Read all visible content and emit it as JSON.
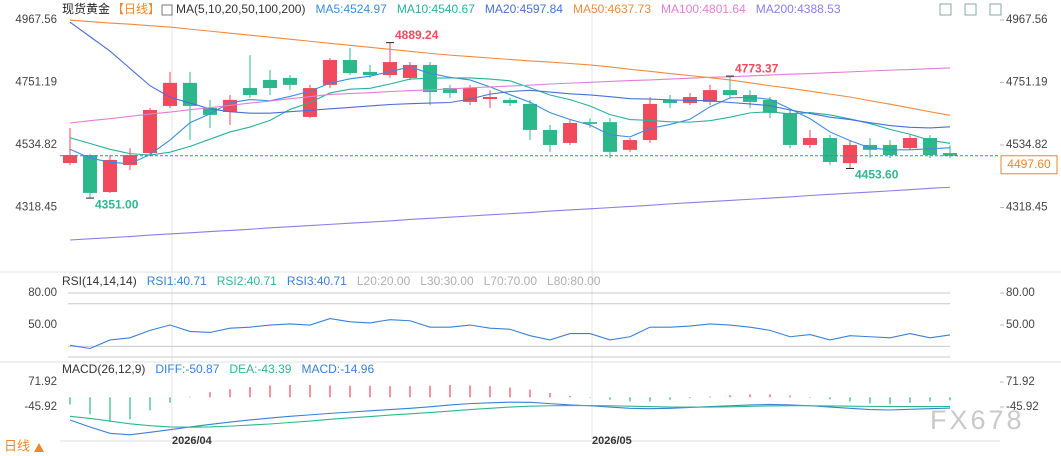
{
  "chart_data": [
    {
      "type": "candlestick",
      "title": "现货黄金",
      "period": "【日线】",
      "indicator": "MA(5,10,20,50,100,200)",
      "categories": [
        null,
        null,
        null,
        null,
        null,
        "2026/04",
        null,
        null,
        null,
        null,
        null,
        null,
        null,
        null,
        null,
        null,
        null,
        null,
        null,
        null,
        null,
        null,
        null,
        null,
        null,
        null,
        "2026/05",
        null,
        null,
        null,
        null,
        null,
        null,
        null,
        null,
        null,
        null,
        null,
        null,
        null,
        null,
        null,
        null,
        null,
        null
      ],
      "open": [
        4472.5,
        4500,
        4372,
        4465.6,
        4507,
        4670,
        4750,
        4663,
        4649,
        4732,
        4760,
        4767,
        4632,
        4743,
        4829,
        4788,
        4777,
        4767,
        4812,
        4732,
        4684,
        4694,
        4691,
        4677,
        4587,
        4542,
        4614,
        4614,
        4518,
        4552,
        4691,
        4680,
        4684,
        4725,
        4708,
        4691,
        4646,
        4535,
        4559,
        4472,
        4535,
        4535,
        4524,
        4559,
        4507
      ],
      "high": [
        4593.7,
        4503,
        4500,
        4524,
        4663,
        4788,
        4788,
        4691,
        4708,
        4846,
        4795,
        4777,
        4743,
        4836,
        4871,
        4812,
        4889.24,
        4822,
        4822,
        4743,
        4743,
        4725,
        4698,
        4691,
        4604,
        4621,
        4628,
        4628,
        4559,
        4701,
        4708,
        4715,
        4743,
        4773.37,
        4725,
        4701,
        4656,
        4587,
        4569,
        4552,
        4559,
        4552,
        4569,
        4569,
        4535
      ],
      "low": [
        4465.6,
        4351,
        4369,
        4448,
        4500,
        4663,
        4552,
        4594,
        4604,
        4698,
        4708,
        4725,
        4628,
        4732,
        4777,
        4767,
        4767,
        4760,
        4673,
        4698,
        4673,
        4663,
        4670,
        4552,
        4511,
        4535,
        4594,
        4490,
        4511,
        4542,
        4663,
        4673,
        4673,
        4698,
        4663,
        4628,
        4524,
        4524,
        4466,
        4453.6,
        4490,
        4490,
        4518,
        4490,
        4490
      ],
      "close": [
        4500,
        4369,
        4483,
        4500,
        4656,
        4750,
        4670,
        4639,
        4691,
        4708,
        4732,
        4743,
        4732,
        4829,
        4784,
        4777,
        4822,
        4812,
        4718,
        4715,
        4732,
        4701,
        4680,
        4587,
        4535,
        4611,
        4608,
        4511,
        4552,
        4677,
        4680,
        4701,
        4725,
        4708,
        4684,
        4646,
        4535,
        4559,
        4476,
        4535,
        4518,
        4500,
        4559,
        4500,
        4497.6
      ],
      "high_labels": [
        null,
        null,
        null,
        null,
        null,
        null,
        null,
        null,
        null,
        null,
        null,
        null,
        null,
        null,
        null,
        null,
        "4889.24",
        null,
        null,
        null,
        null,
        null,
        null,
        null,
        null,
        null,
        null,
        null,
        null,
        null,
        null,
        null,
        null,
        "4773.37",
        null,
        null,
        null,
        null,
        null,
        null,
        null,
        null,
        null,
        null,
        null
      ],
      "low_labels": [
        null,
        "4351.00",
        null,
        null,
        null,
        null,
        null,
        null,
        null,
        null,
        null,
        null,
        null,
        null,
        null,
        null,
        null,
        null,
        null,
        null,
        null,
        null,
        null,
        null,
        null,
        null,
        null,
        null,
        null,
        null,
        null,
        null,
        null,
        null,
        null,
        null,
        null,
        null,
        null,
        "4453.60",
        null,
        null,
        null,
        null,
        null
      ],
      "last_price_label": "4497.60",
      "up_color": "#f04a5c",
      "down_color": "#2db88c",
      "series": [
        {
          "label": "MA5:4524.97",
          "color": "#3b8ddc",
          "values": [
            4520,
            4490,
            4475,
            4470,
            4502,
            4552,
            4612,
            4643,
            4681,
            4692,
            4688,
            4703,
            4721,
            4749,
            4764,
            4773,
            4789,
            4805,
            4783,
            4769,
            4760,
            4736,
            4709,
            4683,
            4647,
            4623,
            4604,
            4570,
            4563,
            4592,
            4606,
            4624,
            4667,
            4698,
            4700,
            4693,
            4660,
            4626,
            4580,
            4550,
            4525,
            4518,
            4518,
            4522,
            4524.97
          ]
        },
        {
          "label": "MA10:4540.67",
          "color": "#27b29a",
          "values": [
            4560,
            4540,
            4520,
            4505,
            4500,
            4510,
            4530,
            4555,
            4580,
            4597,
            4620,
            4658,
            4682,
            4715,
            4728,
            4731,
            4746,
            4763,
            4766,
            4767,
            4767,
            4763,
            4757,
            4733,
            4708,
            4692,
            4670,
            4640,
            4623,
            4620,
            4615,
            4614,
            4619,
            4631,
            4646,
            4650,
            4642,
            4647,
            4639,
            4625,
            4609,
            4589,
            4572,
            4551,
            4540.67
          ]
        },
        {
          "label": "MA20:4597.84",
          "color": "#4a6fd6",
          "values": [
            4960,
            4910,
            4860,
            4800,
            4740,
            4700,
            4680,
            4660,
            4650,
            4645,
            4645,
            4650,
            4655,
            4660,
            4665,
            4670,
            4675,
            4678,
            4680,
            4682,
            4694,
            4711,
            4720,
            4724,
            4718,
            4712,
            4708,
            4702,
            4695,
            4694,
            4691,
            4689,
            4688,
            4682,
            4677,
            4671,
            4656,
            4644,
            4631,
            4623,
            4612,
            4602,
            4596,
            4594,
            4597.84
          ]
        },
        {
          "label": "MA50:4637.73",
          "color": "#f08a3e",
          "values": [
            4967,
            4962,
            4957,
            4953,
            4948,
            4943,
            4936,
            4929,
            4922,
            4915,
            4908,
            4901,
            4894,
            4887,
            4880,
            4873,
            4866,
            4859,
            4852,
            4846,
            4841,
            4836,
            4831,
            4826,
            4822,
            4817,
            4812,
            4805,
            4797,
            4790,
            4782,
            4775,
            4768,
            4760,
            4750,
            4740,
            4731,
            4721,
            4711,
            4701,
            4688,
            4676,
            4663,
            4650,
            4637.73
          ]
        },
        {
          "label": "MA100:4801.64",
          "color": "#e07fd6",
          "values": [
            4611,
            4619,
            4626,
            4634,
            4642,
            4649,
            4657,
            4664,
            4672,
            4680,
            4687,
            4695,
            4702,
            4710,
            4713,
            4716,
            4720,
            4723,
            4726,
            4729,
            4733,
            4736,
            4739,
            4742,
            4746,
            4749,
            4752,
            4755,
            4758,
            4760,
            4763,
            4766,
            4769,
            4771,
            4774,
            4777,
            4780,
            4782,
            4785,
            4788,
            4791,
            4794,
            4796,
            4799,
            4801.64
          ]
        },
        {
          "label": "MA200:4388.53",
          "color": "#8b7ee8",
          "values": [
            4206,
            4210,
            4214,
            4218,
            4223,
            4227,
            4231,
            4235,
            4239,
            4243,
            4248,
            4252,
            4256,
            4260,
            4264,
            4268,
            4272,
            4277,
            4281,
            4285,
            4289,
            4293,
            4297,
            4301,
            4306,
            4310,
            4314,
            4318,
            4322,
            4326,
            4331,
            4335,
            4339,
            4343,
            4347,
            4351,
            4355,
            4360,
            4364,
            4368,
            4372,
            4376,
            4380,
            4385,
            4388.53
          ]
        }
      ],
      "ylim": [
        4102.1,
        5009.1
      ],
      "yticks": [
        4318.45,
        4534.82,
        4751.19,
        4967.56
      ]
    },
    {
      "type": "line",
      "title": "RSI(14,14,14)",
      "series": [
        {
          "label": "RSI1:40.71",
          "color": "#3a80d8",
          "values": [
            31,
            28,
            36,
            38,
            45,
            50,
            44,
            43,
            47,
            48,
            50,
            51,
            50,
            56,
            53,
            52,
            55,
            54,
            48,
            48,
            50,
            47,
            46,
            40,
            36,
            42,
            42,
            36,
            39,
            48,
            48,
            49,
            51,
            50,
            48,
            45,
            39,
            41,
            36,
            40,
            39,
            38,
            42,
            38,
            40.71
          ]
        }
      ],
      "legend": [
        {
          "label": "RSI2:40.71",
          "color": "#33b497"
        },
        {
          "label": "RSI3:40.71",
          "color": "#3a80d8"
        }
      ],
      "levels": [
        {
          "label": "L20:20.00",
          "value": 20
        },
        {
          "label": "L30:30.00",
          "value": 30
        },
        {
          "label": "L70:70.00",
          "value": 70
        },
        {
          "label": "L80:80.00",
          "value": 80
        }
      ],
      "ylim": [
        17.2,
        89.4
      ],
      "yticks": [
        {
          "value": 80,
          "label": "80.00"
        },
        {
          "value": 50,
          "label": "50.00"
        }
      ]
    },
    {
      "type": "macd",
      "title": "MACD(26,12,9)",
      "series": [
        {
          "label": "DIFF:-50.87",
          "color": "#3a80d8",
          "values": [
            -107,
            -140,
            -170,
            -177,
            -165,
            -153,
            -140,
            -128,
            -117,
            -107,
            -98,
            -90,
            -83,
            -76,
            -70,
            -64,
            -58,
            -52,
            -45,
            -36,
            -30,
            -26,
            -23,
            -24,
            -30,
            -36,
            -40,
            -46,
            -52,
            -54,
            -52,
            -48,
            -44,
            -40,
            -36,
            -34,
            -36,
            -40,
            -46,
            -52,
            -58,
            -60,
            -57,
            -54,
            -50.87
          ]
        },
        {
          "label": "DEA:-43.39",
          "color": "#2db88c",
          "values": [
            -90,
            -100,
            -112,
            -125,
            -134,
            -140,
            -141,
            -140,
            -136,
            -131,
            -126,
            -119,
            -112,
            -104,
            -97,
            -91,
            -84,
            -78,
            -72,
            -65,
            -58,
            -52,
            -46,
            -42,
            -40,
            -39,
            -39,
            -40,
            -42,
            -44,
            -46,
            -46,
            -46,
            -45,
            -43,
            -41,
            -40,
            -40,
            -41,
            -42,
            -43,
            -44,
            -44,
            -44,
            -43.39
          ]
        }
      ],
      "histogram": {
        "label": "MACD:-14.96",
        "up_color": "#f04a5c",
        "down_color": "#2db88c",
        "values": [
          -34,
          -80,
          -116,
          -104,
          -62,
          -26,
          2,
          24,
          38,
          48,
          56,
          58,
          58,
          56,
          54,
          54,
          52,
          52,
          54,
          58,
          56,
          52,
          46,
          36,
          20,
          6,
          -2,
          -12,
          -20,
          -20,
          -12,
          -4,
          4,
          10,
          14,
          14,
          8,
          0,
          -10,
          -20,
          -30,
          -32,
          -26,
          -20,
          -14.96
        ]
      },
      "ylim": [
        -201.4,
        152
      ],
      "yticks": [
        71.92,
        -45.92
      ]
    }
  ],
  "footer": "日线",
  "watermark": "FX678"
}
